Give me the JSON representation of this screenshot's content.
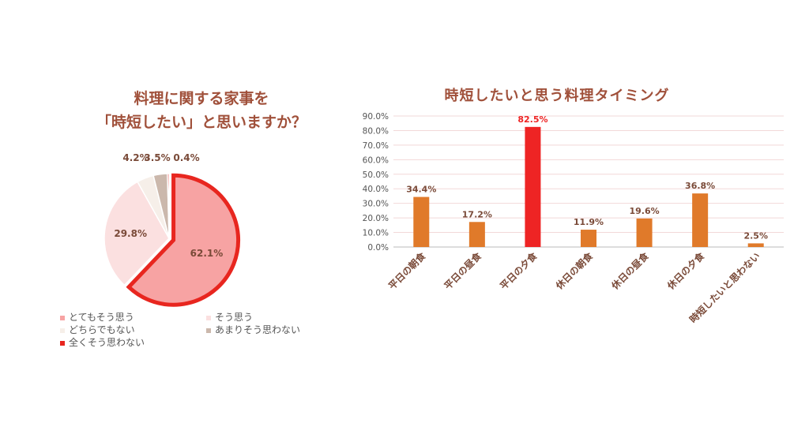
{
  "pie_panel": {
    "title_line1": "料理に関する家事を",
    "title_line2": "「時短したい」と思いますか？"
  },
  "bar_panel": {
    "title": "時短したいと思う料理タイミング"
  },
  "chart_data": [
    {
      "type": "pie",
      "title": "料理に関する家事を「時短したい」と思いますか？",
      "slices": [
        {
          "label": "とてもそう思う",
          "value": 62.1,
          "value_label": "62.1%",
          "color": "#f7a3a3"
        },
        {
          "label": "そう思う",
          "value": 29.8,
          "value_label": "29.8%",
          "color": "#fbe0e0"
        },
        {
          "label": "どちらでもない",
          "value": 4.2,
          "value_label": "4.2%",
          "color": "#f6efe9"
        },
        {
          "label": "あまりそう思わない",
          "value": 3.5,
          "value_label": "3.5%",
          "color": "#cbb8ac"
        },
        {
          "label": "全くそう思わない",
          "value": 0.4,
          "value_label": "0.4%",
          "color": "#e8261f"
        }
      ],
      "highlight_color": "#e8261f",
      "legend": [
        {
          "label": "とてもそう思う",
          "color": "#f7a3a3"
        },
        {
          "label": "そう思う",
          "color": "#fbe0e0"
        },
        {
          "label": "どちらでもない",
          "color": "#f6efe9"
        },
        {
          "label": "あまりそう思わない",
          "color": "#cbb8ac"
        },
        {
          "label": "全くそう思わない",
          "color": "#e8261f"
        }
      ]
    },
    {
      "type": "bar",
      "title": "時短したいと思う料理タイミング",
      "categories": [
        "平日の朝食",
        "平日の昼食",
        "平日の夕食",
        "休日の朝食",
        "休日の昼食",
        "休日の夕食",
        "時短したいと思わない"
      ],
      "values": [
        34.4,
        17.2,
        82.5,
        11.9,
        19.6,
        36.8,
        2.5
      ],
      "value_labels": [
        "34.4%",
        "17.2%",
        "82.5%",
        "11.9%",
        "19.6%",
        "36.8%",
        "2.5%"
      ],
      "highlight_index": 2,
      "bar_color": "#e07a2a",
      "highlight_color": "#ee2424",
      "label_color": "#7a4a38",
      "ylim": [
        0,
        90
      ],
      "yticks": [
        "0.0%",
        "10.0%",
        "20.0%",
        "30.0%",
        "40.0%",
        "50.0%",
        "60.0%",
        "70.0%",
        "80.0%",
        "90.0%"
      ],
      "grid": true
    }
  ]
}
